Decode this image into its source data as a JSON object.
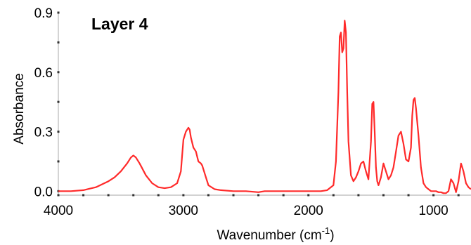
{
  "chart_data": {
    "type": "line",
    "title": "Layer 4",
    "xlabel": "Wavenumber (cm",
    "xlabel_sup": "-1",
    "xlabel_suffix": ")",
    "ylabel": "Absorbance",
    "xlim": [
      4000,
      700
    ],
    "ylim": [
      -0.02,
      0.9
    ],
    "x_reversed": true,
    "x_ticks": [
      {
        "value": 4000,
        "label": "4000"
      },
      {
        "value": 3000,
        "label": "3000"
      },
      {
        "value": 2000,
        "label": "2000"
      },
      {
        "value": 1000,
        "label": "1000"
      }
    ],
    "y_ticks": [
      {
        "value": 0.0,
        "label": "0.0"
      },
      {
        "value": 0.3,
        "label": "0.3"
      },
      {
        "value": 0.6,
        "label": "0.6"
      },
      {
        "value": 0.9,
        "label": "0.9"
      }
    ],
    "grid": false,
    "series": [
      {
        "color": "#ff2a2a",
        "x": [
          4000,
          3900,
          3800,
          3700,
          3600,
          3550,
          3500,
          3450,
          3420,
          3400,
          3380,
          3350,
          3300,
          3250,
          3200,
          3150,
          3100,
          3050,
          3020,
          3000,
          2980,
          2960,
          2950,
          2940,
          2920,
          2900,
          2880,
          2860,
          2850,
          2820,
          2800,
          2750,
          2700,
          2600,
          2500,
          2400,
          2350,
          2300,
          2200,
          2100,
          2000,
          1900,
          1850,
          1800,
          1780,
          1760,
          1750,
          1740,
          1730,
          1720,
          1710,
          1700,
          1690,
          1680,
          1660,
          1640,
          1620,
          1600,
          1580,
          1560,
          1540,
          1520,
          1500,
          1490,
          1480,
          1470,
          1460,
          1450,
          1440,
          1420,
          1400,
          1380,
          1360,
          1340,
          1320,
          1300,
          1280,
          1260,
          1240,
          1220,
          1200,
          1180,
          1170,
          1160,
          1150,
          1140,
          1120,
          1100,
          1080,
          1060,
          1040,
          1020,
          1000,
          980,
          960,
          940,
          920,
          900,
          880,
          860,
          840,
          820,
          800,
          780,
          760,
          740,
          720,
          700
        ],
        "y": [
          0.0,
          0.0,
          0.005,
          0.02,
          0.05,
          0.07,
          0.1,
          0.14,
          0.17,
          0.18,
          0.17,
          0.14,
          0.08,
          0.04,
          0.02,
          0.015,
          0.02,
          0.04,
          0.1,
          0.26,
          0.3,
          0.32,
          0.31,
          0.27,
          0.22,
          0.2,
          0.15,
          0.14,
          0.13,
          0.07,
          0.03,
          0.01,
          0.005,
          0.0,
          0.0,
          -0.005,
          0.0,
          0.0,
          0.0,
          0.0,
          0.0,
          0.0,
          0.005,
          0.03,
          0.15,
          0.5,
          0.78,
          0.8,
          0.7,
          0.72,
          0.86,
          0.8,
          0.5,
          0.25,
          0.08,
          0.05,
          0.07,
          0.1,
          0.14,
          0.15,
          0.1,
          0.06,
          0.25,
          0.44,
          0.45,
          0.3,
          0.12,
          0.05,
          0.03,
          0.07,
          0.14,
          0.1,
          0.06,
          0.08,
          0.12,
          0.2,
          0.28,
          0.3,
          0.24,
          0.16,
          0.15,
          0.22,
          0.38,
          0.46,
          0.47,
          0.42,
          0.28,
          0.12,
          0.04,
          0.02,
          0.01,
          0.0,
          0.0,
          0.0,
          -0.005,
          -0.005,
          -0.01,
          -0.01,
          0.0,
          0.06,
          0.04,
          -0.005,
          0.05,
          0.14,
          0.1,
          0.04,
          0.02,
          0.01
        ]
      }
    ]
  }
}
